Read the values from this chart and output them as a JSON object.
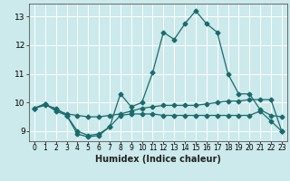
{
  "title": "",
  "xlabel": "Humidex (Indice chaleur)",
  "background_color": "#cce9ec",
  "grid_color": "#ffffff",
  "line_color": "#1a6b6b",
  "x_values": [
    0,
    1,
    2,
    3,
    4,
    5,
    6,
    7,
    8,
    9,
    10,
    11,
    12,
    13,
    14,
    15,
    16,
    17,
    18,
    19,
    20,
    21,
    22,
    23
  ],
  "line1": [
    9.8,
    9.9,
    9.8,
    9.55,
    8.9,
    8.8,
    8.85,
    9.15,
    10.3,
    9.85,
    10.0,
    11.05,
    12.45,
    12.2,
    12.75,
    13.2,
    12.75,
    12.45,
    11.0,
    10.3,
    10.3,
    9.75,
    9.55,
    9.5
  ],
  "line2": [
    9.8,
    9.95,
    9.75,
    9.6,
    9.55,
    9.5,
    9.5,
    9.55,
    9.6,
    9.7,
    9.8,
    9.85,
    9.9,
    9.9,
    9.9,
    9.9,
    9.95,
    10.0,
    10.05,
    10.05,
    10.1,
    10.1,
    10.1,
    9.0
  ],
  "line3": [
    9.8,
    9.95,
    9.7,
    9.55,
    9.0,
    8.85,
    8.9,
    9.15,
    9.55,
    9.6,
    9.6,
    9.6,
    9.55,
    9.55,
    9.55,
    9.55,
    9.55,
    9.55,
    9.55,
    9.55,
    9.55,
    9.7,
    9.35,
    9.0
  ],
  "ylim": [
    8.65,
    13.45
  ],
  "yticks": [
    9,
    10,
    11,
    12,
    13
  ],
  "xlim": [
    -0.5,
    23.5
  ]
}
